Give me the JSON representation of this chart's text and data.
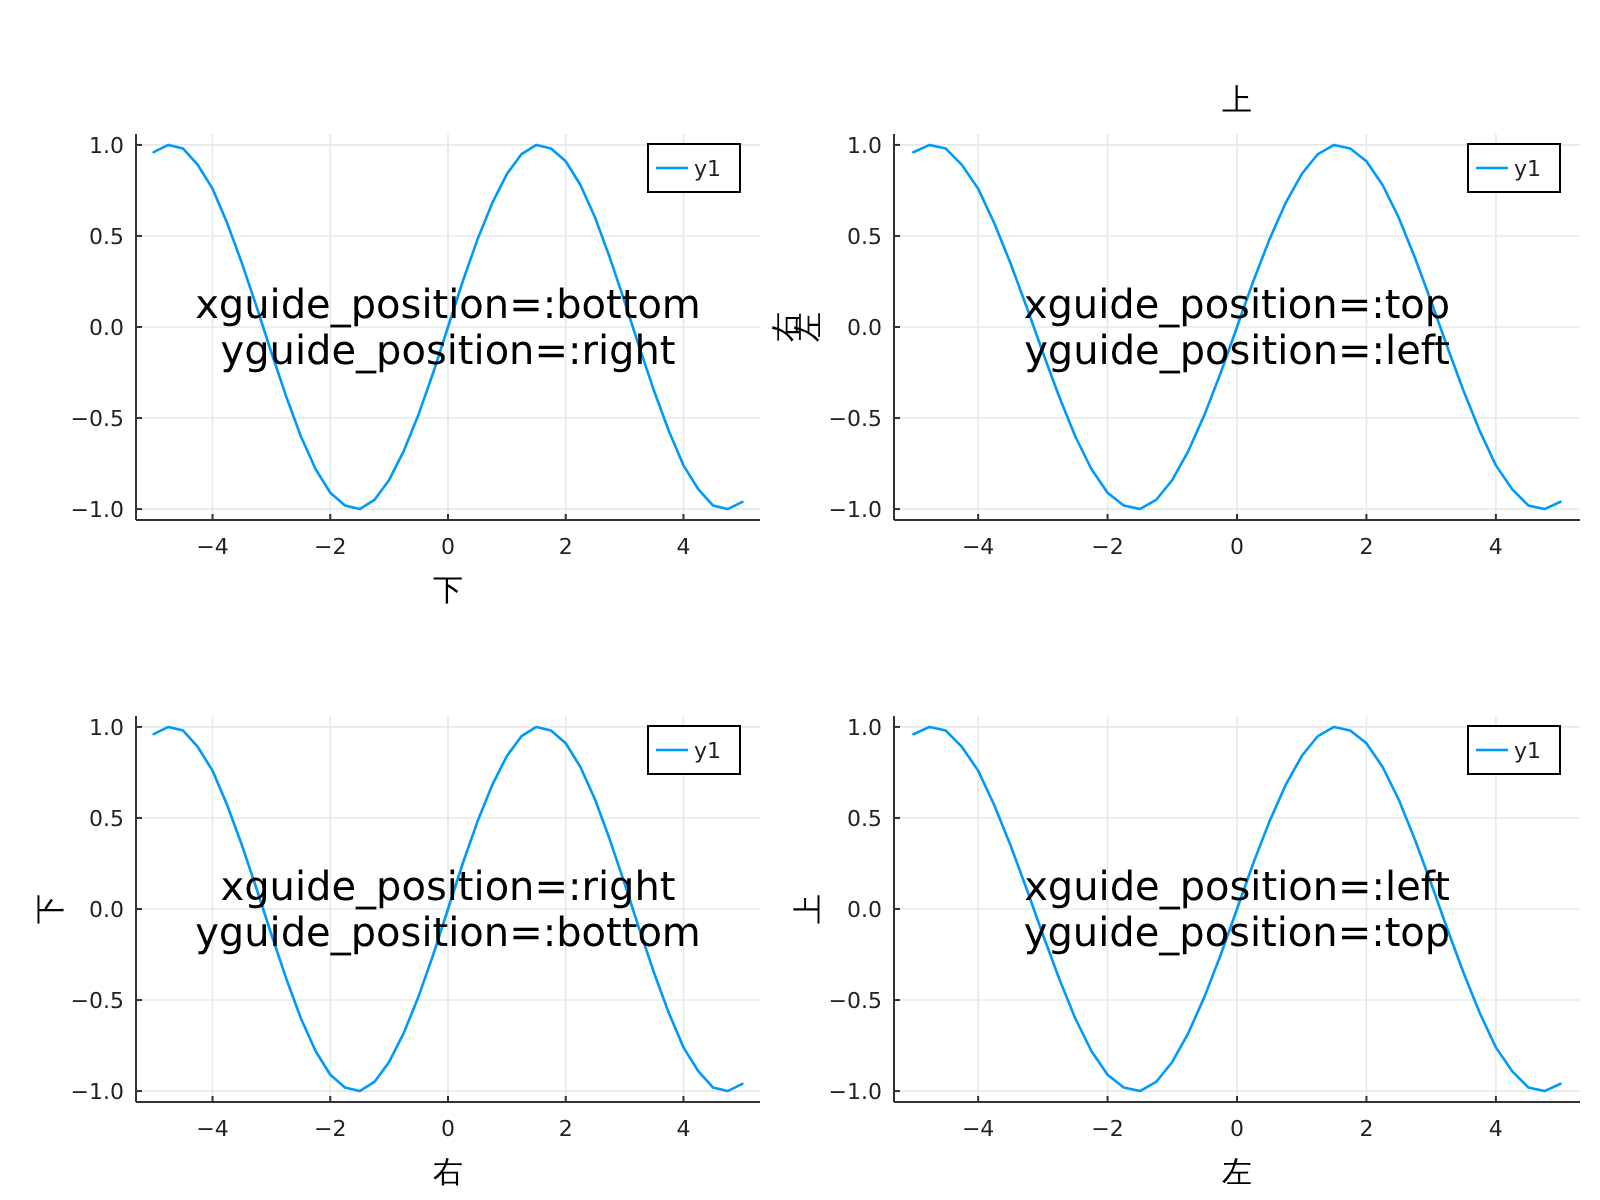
{
  "chart_data": [
    {
      "type": "line",
      "xlabel": "下",
      "y2label": "右",
      "annotations": [
        "xguide_position=:bottom",
        "yguide_position=:right"
      ],
      "x": [
        -5,
        -4.75,
        -4.5,
        -4.25,
        -4,
        -3.75,
        -3.5,
        -3.25,
        -3,
        -2.75,
        -2.5,
        -2.25,
        -2,
        -1.75,
        -1.5,
        -1.25,
        -1,
        -0.75,
        -0.5,
        -0.25,
        0,
        0.25,
        0.5,
        0.75,
        1,
        1.25,
        1.5,
        1.75,
        2,
        2.25,
        2.5,
        2.75,
        3,
        3.25,
        3.5,
        3.75,
        4,
        4.25,
        4.5,
        4.75,
        5
      ],
      "series": [
        {
          "name": "y1",
          "color": "#009af9",
          "values": [
            0.96,
            1.0,
            0.98,
            0.89,
            0.76,
            0.57,
            0.35,
            0.11,
            -0.14,
            -0.38,
            -0.6,
            -0.78,
            -0.91,
            -0.98,
            -1.0,
            -0.95,
            -0.84,
            -0.68,
            -0.48,
            -0.25,
            0,
            0.25,
            0.48,
            0.68,
            0.84,
            0.95,
            1.0,
            0.98,
            0.91,
            0.78,
            0.6,
            0.38,
            0.14,
            -0.11,
            -0.35,
            -0.57,
            -0.76,
            -0.89,
            -0.98,
            -1.0,
            -0.96
          ]
        }
      ],
      "xlim": [
        -5.3,
        5.3
      ],
      "ylim": [
        -1.06,
        1.06
      ],
      "xticks": [
        -4,
        -2,
        0,
        2,
        4
      ],
      "yticks": [
        {
          "value": -1,
          "label": "−1.0"
        },
        {
          "value": -0.5,
          "label": "−0.5"
        },
        {
          "value": 0,
          "label": "0.0"
        },
        {
          "value": 0.5,
          "label": "0.5"
        },
        {
          "value": 1,
          "label": "1.0"
        }
      ],
      "grid": true,
      "legend": "top right"
    },
    {
      "type": "line",
      "x2label": "上",
      "ylabel": "左",
      "annotations": [
        "xguide_position=:top",
        "yguide_position=:left"
      ],
      "x": [
        -5,
        -4.75,
        -4.5,
        -4.25,
        -4,
        -3.75,
        -3.5,
        -3.25,
        -3,
        -2.75,
        -2.5,
        -2.25,
        -2,
        -1.75,
        -1.5,
        -1.25,
        -1,
        -0.75,
        -0.5,
        -0.25,
        0,
        0.25,
        0.5,
        0.75,
        1,
        1.25,
        1.5,
        1.75,
        2,
        2.25,
        2.5,
        2.75,
        3,
        3.25,
        3.5,
        3.75,
        4,
        4.25,
        4.5,
        4.75,
        5
      ],
      "series": [
        {
          "name": "y1",
          "color": "#009af9",
          "values": [
            0.96,
            1.0,
            0.98,
            0.89,
            0.76,
            0.57,
            0.35,
            0.11,
            -0.14,
            -0.38,
            -0.6,
            -0.78,
            -0.91,
            -0.98,
            -1.0,
            -0.95,
            -0.84,
            -0.68,
            -0.48,
            -0.25,
            0,
            0.25,
            0.48,
            0.68,
            0.84,
            0.95,
            1.0,
            0.98,
            0.91,
            0.78,
            0.6,
            0.38,
            0.14,
            -0.11,
            -0.35,
            -0.57,
            -0.76,
            -0.89,
            -0.98,
            -1.0,
            -0.96
          ]
        }
      ],
      "xlim": [
        -5.3,
        5.3
      ],
      "ylim": [
        -1.06,
        1.06
      ],
      "xticks": [
        -4,
        -2,
        0,
        2,
        4
      ],
      "yticks": [
        {
          "value": -1,
          "label": "−1.0"
        },
        {
          "value": -0.5,
          "label": "−0.5"
        },
        {
          "value": 0,
          "label": "0.0"
        },
        {
          "value": 0.5,
          "label": "0.5"
        },
        {
          "value": 1,
          "label": "1.0"
        }
      ],
      "grid": true,
      "legend": "top right"
    },
    {
      "type": "line",
      "xlabel": "右",
      "ylabel": "下",
      "annotations": [
        "xguide_position=:right",
        "yguide_position=:bottom"
      ],
      "x": [
        -5,
        -4.75,
        -4.5,
        -4.25,
        -4,
        -3.75,
        -3.5,
        -3.25,
        -3,
        -2.75,
        -2.5,
        -2.25,
        -2,
        -1.75,
        -1.5,
        -1.25,
        -1,
        -0.75,
        -0.5,
        -0.25,
        0,
        0.25,
        0.5,
        0.75,
        1,
        1.25,
        1.5,
        1.75,
        2,
        2.25,
        2.5,
        2.75,
        3,
        3.25,
        3.5,
        3.75,
        4,
        4.25,
        4.5,
        4.75,
        5
      ],
      "series": [
        {
          "name": "y1",
          "color": "#009af9",
          "values": [
            0.96,
            1.0,
            0.98,
            0.89,
            0.76,
            0.57,
            0.35,
            0.11,
            -0.14,
            -0.38,
            -0.6,
            -0.78,
            -0.91,
            -0.98,
            -1.0,
            -0.95,
            -0.84,
            -0.68,
            -0.48,
            -0.25,
            0,
            0.25,
            0.48,
            0.68,
            0.84,
            0.95,
            1.0,
            0.98,
            0.91,
            0.78,
            0.6,
            0.38,
            0.14,
            -0.11,
            -0.35,
            -0.57,
            -0.76,
            -0.89,
            -0.98,
            -1.0,
            -0.96
          ]
        }
      ],
      "xlim": [
        -5.3,
        5.3
      ],
      "ylim": [
        -1.06,
        1.06
      ],
      "xticks": [
        -4,
        -2,
        0,
        2,
        4
      ],
      "yticks": [
        {
          "value": -1,
          "label": "−1.0"
        },
        {
          "value": -0.5,
          "label": "−0.5"
        },
        {
          "value": 0,
          "label": "0.0"
        },
        {
          "value": 0.5,
          "label": "0.5"
        },
        {
          "value": 1,
          "label": "1.0"
        }
      ],
      "grid": true,
      "legend": "top right"
    },
    {
      "type": "line",
      "xlabel": "左",
      "ylabel": "上",
      "annotations": [
        "xguide_position=:left",
        "yguide_position=:top"
      ],
      "x": [
        -5,
        -4.75,
        -4.5,
        -4.25,
        -4,
        -3.75,
        -3.5,
        -3.25,
        -3,
        -2.75,
        -2.5,
        -2.25,
        -2,
        -1.75,
        -1.5,
        -1.25,
        -1,
        -0.75,
        -0.5,
        -0.25,
        0,
        0.25,
        0.5,
        0.75,
        1,
        1.25,
        1.5,
        1.75,
        2,
        2.25,
        2.5,
        2.75,
        3,
        3.25,
        3.5,
        3.75,
        4,
        4.25,
        4.5,
        4.75,
        5
      ],
      "series": [
        {
          "name": "y1",
          "color": "#009af9",
          "values": [
            0.96,
            1.0,
            0.98,
            0.89,
            0.76,
            0.57,
            0.35,
            0.11,
            -0.14,
            -0.38,
            -0.6,
            -0.78,
            -0.91,
            -0.98,
            -1.0,
            -0.95,
            -0.84,
            -0.68,
            -0.48,
            -0.25,
            0,
            0.25,
            0.48,
            0.68,
            0.84,
            0.95,
            1.0,
            0.98,
            0.91,
            0.78,
            0.6,
            0.38,
            0.14,
            -0.11,
            -0.35,
            -0.57,
            -0.76,
            -0.89,
            -0.98,
            -1.0,
            -0.96
          ]
        }
      ],
      "xlim": [
        -5.3,
        5.3
      ],
      "ylim": [
        -1.06,
        1.06
      ],
      "xticks": [
        -4,
        -2,
        0,
        2,
        4
      ],
      "yticks": [
        {
          "value": -1,
          "label": "−1.0"
        },
        {
          "value": -0.5,
          "label": "−0.5"
        },
        {
          "value": 0,
          "label": "0.0"
        },
        {
          "value": 0.5,
          "label": "0.5"
        },
        {
          "value": 1,
          "label": "1.0"
        }
      ],
      "grid": true,
      "legend": "top right"
    }
  ]
}
